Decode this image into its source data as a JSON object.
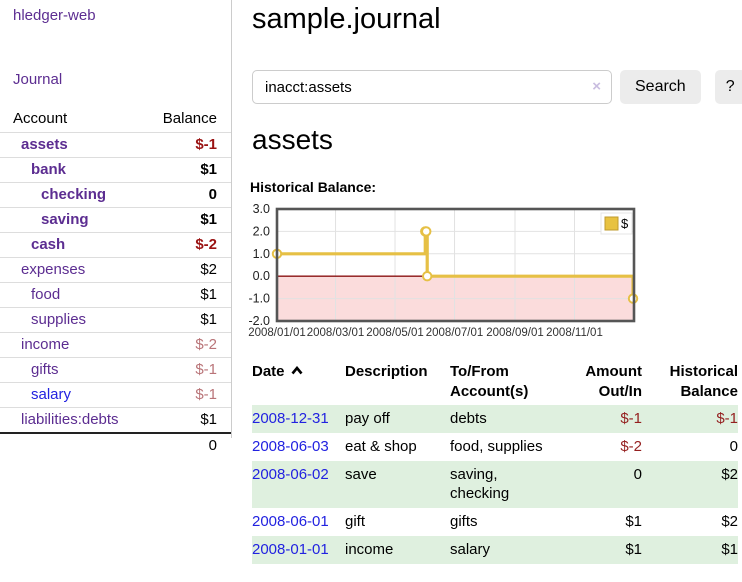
{
  "app": {
    "title": "hledger-web"
  },
  "nav": {
    "journal": "Journal"
  },
  "sidebar_table": {
    "headers": {
      "account": "Account",
      "balance": "Balance"
    },
    "rows": [
      {
        "name": "assets",
        "depth": 1,
        "bold": true,
        "balance": "$-1",
        "balance_class": "neg-strong",
        "link_color": "purple"
      },
      {
        "name": "bank",
        "depth": 2,
        "bold": true,
        "balance": "$1",
        "balance_class": "",
        "link_color": "purple"
      },
      {
        "name": "checking",
        "depth": 3,
        "bold": true,
        "balance": "0",
        "balance_class": "",
        "link_color": "purple"
      },
      {
        "name": "saving",
        "depth": 3,
        "bold": true,
        "balance": "$1",
        "balance_class": "",
        "link_color": "purple"
      },
      {
        "name": "cash",
        "depth": 2,
        "bold": true,
        "balance": "$-2",
        "balance_class": "neg-strong",
        "link_color": "purple"
      },
      {
        "name": "expenses",
        "depth": 1,
        "bold": false,
        "balance": "$2",
        "balance_class": "",
        "link_color": "purple"
      },
      {
        "name": "food",
        "depth": 2,
        "bold": false,
        "balance": "$1",
        "balance_class": "",
        "link_color": "purple"
      },
      {
        "name": "supplies",
        "depth": 2,
        "bold": false,
        "balance": "$1",
        "balance_class": "",
        "link_color": "purple"
      },
      {
        "name": "income",
        "depth": 1,
        "bold": false,
        "balance": "$-2",
        "balance_class": "neg-faint",
        "link_color": "purple"
      },
      {
        "name": "gifts",
        "depth": 2,
        "bold": false,
        "balance": "$-1",
        "balance_class": "neg-faint",
        "link_color": "purple"
      },
      {
        "name": "salary",
        "depth": 2,
        "bold": false,
        "balance": "$-1",
        "balance_class": "neg-faint",
        "link_color": "blue"
      },
      {
        "name": "liabilities:debts",
        "depth": 1,
        "bold": false,
        "balance": "$1",
        "balance_class": "",
        "link_color": "purple"
      }
    ],
    "total": "0"
  },
  "main": {
    "title": "sample.journal",
    "search": {
      "value": "inacct:assets",
      "clear_icon": "×",
      "button": "Search",
      "help_button": "?"
    },
    "account_heading": "assets",
    "chart_label": "Historical Balance:"
  },
  "chart_data": {
    "type": "line",
    "title": "Historical Balance",
    "step": "after",
    "x_range": [
      "2008-01-01",
      "2009-01-01"
    ],
    "ylim": [
      -2,
      3
    ],
    "y_ticks": [
      3.0,
      2.0,
      1.0,
      0.0,
      -1.0,
      -2.0
    ],
    "x_ticks": [
      {
        "date": "2008-01-01",
        "label": "2008/01/01"
      },
      {
        "date": "2008-03-01",
        "label": "2008/03/01"
      },
      {
        "date": "2008-05-01",
        "label": "2008/05/01"
      },
      {
        "date": "2008-07-01",
        "label": "2008/07/01"
      },
      {
        "date": "2008-09-01",
        "label": "2008/09/01"
      },
      {
        "date": "2008-11-01",
        "label": "2008/11/01"
      }
    ],
    "legend": [
      {
        "label": "$",
        "color": "#e8c240"
      }
    ],
    "legend_position": "top-right",
    "grid": true,
    "series": [
      {
        "name": "$",
        "points": [
          [
            "2008-01-01",
            1
          ],
          [
            "2008-06-01",
            2
          ],
          [
            "2008-06-02",
            2
          ],
          [
            "2008-06-03",
            0
          ],
          [
            "2008-12-31",
            -1
          ]
        ]
      }
    ],
    "line_color": "#e6c045",
    "marker_fill": "#ffffff",
    "negative_region_fill": "#fbdcdc",
    "zero_line_color": "#8b1212",
    "border_color": "#555555",
    "grid_color": "#e2e2e2"
  },
  "register_table": {
    "headers": {
      "date": "Date",
      "description": "Description",
      "account": "To/From Account(s)",
      "amount": "Amount Out/In",
      "balance": "Historical Balance"
    },
    "rows": [
      {
        "date": "2008-12-31",
        "description": "pay off",
        "accounts": "debts",
        "amount": "$-1",
        "amount_class": "neg",
        "balance": "$-1",
        "balance_class": "neg"
      },
      {
        "date": "2008-06-03",
        "description": "eat & shop",
        "accounts": "food, supplies",
        "amount": "$-2",
        "amount_class": "neg",
        "balance": "0",
        "balance_class": ""
      },
      {
        "date": "2008-06-02",
        "description": "save",
        "accounts": "saving, checking",
        "amount": "0",
        "amount_class": "",
        "balance": "$2",
        "balance_class": ""
      },
      {
        "date": "2008-06-01",
        "description": "gift",
        "accounts": "gifts",
        "amount": "$1",
        "amount_class": "",
        "balance": "$2",
        "balance_class": ""
      },
      {
        "date": "2008-01-01",
        "description": "income",
        "accounts": "salary",
        "amount": "$1",
        "amount_class": "",
        "balance": "$1",
        "balance_class": ""
      }
    ]
  }
}
